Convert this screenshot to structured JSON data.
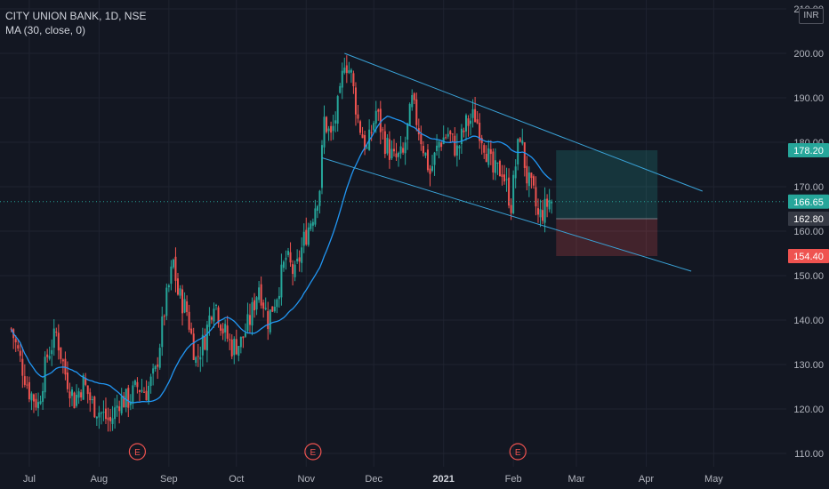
{
  "legend": {
    "symbol_line": "CITY UNION BANK, 1D, NSE",
    "indicator_line": "MA (30, close, 0)"
  },
  "axis": {
    "currency": "INR"
  },
  "colors": {
    "background": "#131722",
    "grid": "#1f2330",
    "up": "#26a69a",
    "down": "#ef5350",
    "ma": "#2196f3",
    "channel": "#3aa3d8",
    "target_zone": "rgba(38,166,154,0.22)",
    "stop_zone": "rgba(239,83,80,0.22)",
    "earnings": "#ef5350"
  },
  "chart_data": {
    "type": "candlestick",
    "y_axis": {
      "range": [
        107,
        212
      ],
      "ticks": [
        110,
        120,
        130,
        140,
        150,
        160,
        170,
        180,
        190,
        200,
        210
      ],
      "tick_labels": [
        "110.00",
        "120.00",
        "130.00",
        "140.00",
        "150.00",
        "160.00",
        "170.00",
        "180.00",
        "190.00",
        "200.00",
        "210.00"
      ]
    },
    "x_axis": {
      "labels": [
        {
          "text": "Jul",
          "day": 8
        },
        {
          "text": "Aug",
          "day": 39,
          "bold": false
        },
        {
          "text": "Sep",
          "day": 70
        },
        {
          "text": "Oct",
          "day": 100
        },
        {
          "text": "Nov",
          "day": 131
        },
        {
          "text": "Dec",
          "day": 161
        },
        {
          "text": "2021",
          "day": 192,
          "bold": true
        },
        {
          "text": "Feb",
          "day": 223
        },
        {
          "text": "Mar",
          "day": 251
        },
        {
          "text": "Apr",
          "day": 282
        },
        {
          "text": "May",
          "day": 312
        }
      ],
      "day_range": [
        -5,
        330
      ]
    },
    "candle_keypoints": [
      [
        0,
        138
      ],
      [
        4,
        131
      ],
      [
        8,
        124
      ],
      [
        12,
        121
      ],
      [
        16,
        132
      ],
      [
        20,
        137
      ],
      [
        24,
        128
      ],
      [
        28,
        122
      ],
      [
        32,
        126
      ],
      [
        36,
        121
      ],
      [
        40,
        119
      ],
      [
        44,
        117
      ],
      [
        48,
        122
      ],
      [
        52,
        122
      ],
      [
        56,
        125
      ],
      [
        60,
        124
      ],
      [
        64,
        128
      ],
      [
        68,
        142
      ],
      [
        72,
        153
      ],
      [
        74,
        146
      ],
      [
        78,
        142
      ],
      [
        82,
        131
      ],
      [
        86,
        136
      ],
      [
        90,
        145
      ],
      [
        94,
        138
      ],
      [
        98,
        134
      ],
      [
        102,
        135
      ],
      [
        106,
        140
      ],
      [
        110,
        148
      ],
      [
        114,
        140
      ],
      [
        118,
        146
      ],
      [
        122,
        154
      ],
      [
        126,
        150
      ],
      [
        130,
        158
      ],
      [
        134,
        164
      ],
      [
        137,
        170
      ],
      [
        139,
        185
      ],
      [
        142,
        181
      ],
      [
        146,
        190
      ],
      [
        148,
        199
      ],
      [
        151,
        195
      ],
      [
        154,
        185
      ],
      [
        158,
        178
      ],
      [
        162,
        187
      ],
      [
        166,
        180
      ],
      [
        170,
        176
      ],
      [
        174,
        177
      ],
      [
        178,
        189
      ],
      [
        182,
        181
      ],
      [
        186,
        173
      ],
      [
        190,
        180
      ],
      [
        194,
        182
      ],
      [
        198,
        178
      ],
      [
        202,
        184
      ],
      [
        206,
        186
      ],
      [
        210,
        180
      ],
      [
        214,
        173
      ],
      [
        218,
        174
      ],
      [
        222,
        166
      ],
      [
        224,
        175
      ],
      [
        226,
        182
      ],
      [
        229,
        172
      ],
      [
        232,
        168
      ],
      [
        234,
        163
      ],
      [
        237,
        165
      ],
      [
        240,
        168
      ]
    ],
    "current_price": 166.65,
    "last_close_label": "166.65",
    "channel": {
      "upper": [
        [
          148,
          200
        ],
        [
          307,
          169
        ]
      ],
      "lower": [
        [
          138,
          176.5
        ],
        [
          302,
          151
        ]
      ]
    },
    "position": {
      "start_day": 242,
      "end_day": 287,
      "entry": 162.8,
      "target": 178.2,
      "stop": 154.4,
      "entry_label": "162.80",
      "target_label": "178.20",
      "stop_label": "154.40"
    },
    "earnings_markers": [
      {
        "day": 56,
        "label": "E"
      },
      {
        "day": 134,
        "label": "E"
      },
      {
        "day": 225,
        "label": "E"
      }
    ],
    "ma_period": 30
  }
}
